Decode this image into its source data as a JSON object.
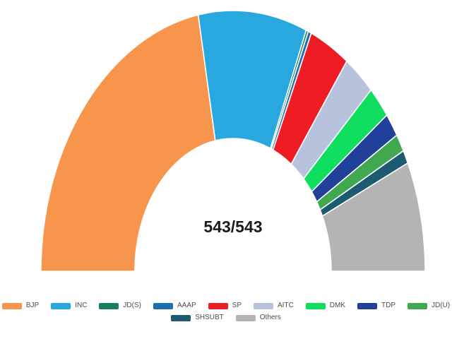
{
  "chart_data": {
    "type": "pie",
    "variant": "half-donut",
    "title": "",
    "center_label": "543/543",
    "total_seats": 543,
    "legend_position": "bottom",
    "background_color": "#ffffff",
    "gap_color": "#ffffff",
    "center_label_color": "#1a1a1a",
    "legend_text_color": "#4d4d4d",
    "categories": [
      "BJP",
      "INC",
      "JD(S)",
      "AAAP",
      "SP",
      "AITC",
      "DMK",
      "TDP",
      "JD(U)",
      "SHSUBT",
      "Others"
    ],
    "values": [
      240,
      99,
      2,
      3,
      37,
      29,
      22,
      16,
      12,
      9,
      74
    ],
    "colors": [
      "#F7954C",
      "#29A8E0",
      "#17805B",
      "#1C6FAD",
      "#EE1C25",
      "#B7C3DD",
      "#10DE5F",
      "#20409A",
      "#41A852",
      "#1D5B73",
      "#B4B4B4"
    ],
    "angle_span_degrees": 180,
    "legend_rows": [
      [
        "BJP",
        "INC",
        "JD(S)",
        "AAAP",
        "SP",
        "AITC",
        "DMK",
        "TDP",
        "JD(U)"
      ],
      [
        "SHSUBT",
        "Others"
      ]
    ]
  }
}
